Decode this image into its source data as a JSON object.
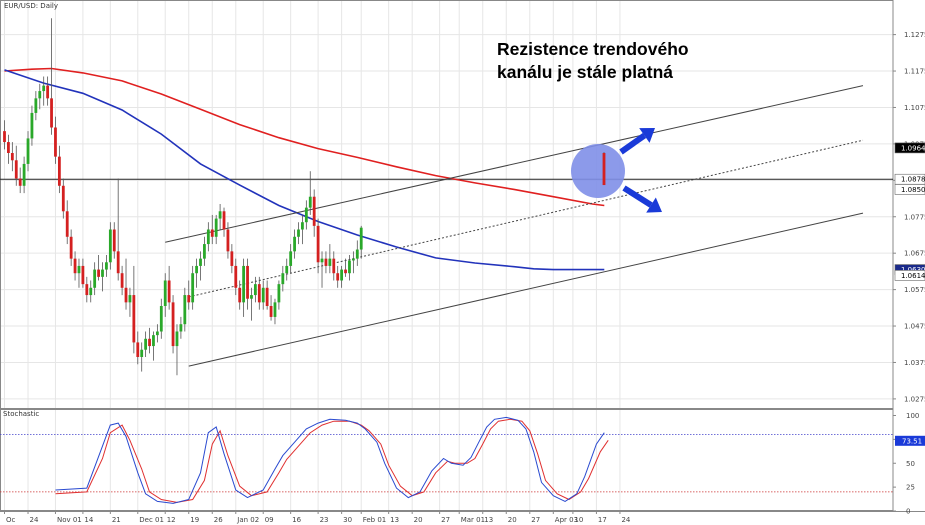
{
  "chart_data": [
    {
      "type": "candlestick",
      "title": "EUR/USD: Daily",
      "annotation": [
        "Rezistence trendového",
        "kanálu je stále platná"
      ],
      "y_ticks": [
        "1.1275",
        "1.1175",
        "1.1075",
        "1.0975",
        "1.0875",
        "1.0775",
        "1.0675",
        "1.0575",
        "1.0475",
        "1.0375",
        "1.0275"
      ],
      "ylim": [
        1.025,
        1.137
      ],
      "price_badges": [
        {
          "label": "1.0964",
          "value": 1.0964,
          "bg": "#000000",
          "fg": "#ffffff"
        },
        {
          "label": "1.0878",
          "value": 1.0878,
          "bg": "#ffffff",
          "fg": "#000000"
        },
        {
          "label": "1.0850",
          "value": 1.085,
          "bg": "#ffffff",
          "fg": "#000000"
        },
        {
          "label": "1.0630",
          "value": 1.063,
          "bg": "#1a2a8a",
          "fg": "#ffffff"
        },
        {
          "label": "1.0614",
          "value": 1.0614,
          "bg": "#ffffff",
          "fg": "#000000"
        }
      ],
      "horizontal_line": 1.0878,
      "x_labels": [
        "Oc",
        "24",
        "Nov 01",
        "14",
        "21",
        "Dec 01",
        "12",
        "19",
        "26",
        "Jan 02",
        "09",
        "16",
        "23",
        "30",
        "Feb 01",
        "13",
        "20",
        "27",
        "Mar 01",
        "13",
        "20",
        "27",
        "Apr 03",
        "10",
        "17",
        "24"
      ],
      "x_label_pos": [
        0,
        6,
        13,
        20,
        27,
        34,
        41,
        47,
        53,
        59,
        66,
        73,
        80,
        86,
        91,
        98,
        104,
        111,
        116,
        122,
        128,
        134,
        140,
        145,
        151,
        157
      ],
      "colors": {
        "bull": "#2aa82a",
        "bear": "#d42020",
        "sma_slow": "#e02020",
        "sma_fast": "#2233bb",
        "channel": "#444444",
        "arrow": "#1a3ad8",
        "highlight": "#7f8fe8",
        "grid": "#e6e6e6"
      },
      "channel": {
        "upper": [
          [
            41,
            1.0705
          ],
          [
            219,
            1.1135
          ]
        ],
        "middle": [
          [
            47,
            1.0555
          ],
          [
            219,
            1.0985
          ]
        ],
        "lower": [
          [
            47,
            1.0365
          ],
          [
            219,
            1.0785
          ]
        ]
      },
      "sma_slow": [
        [
          0,
          1.1175
        ],
        [
          7,
          1.118
        ],
        [
          12,
          1.1182
        ],
        [
          20,
          1.117
        ],
        [
          30,
          1.1148
        ],
        [
          40,
          1.1112
        ],
        [
          50,
          1.107
        ],
        [
          60,
          1.1028
        ],
        [
          70,
          1.0992
        ],
        [
          80,
          1.0962
        ],
        [
          90,
          1.0938
        ],
        [
          100,
          1.0912
        ],
        [
          110,
          1.0888
        ],
        [
          120,
          1.0868
        ],
        [
          130,
          1.085
        ],
        [
          140,
          1.083
        ],
        [
          150,
          1.081
        ],
        [
          153,
          1.0806
        ]
      ],
      "sma_fast": [
        [
          0,
          1.1178
        ],
        [
          10,
          1.1142
        ],
        [
          20,
          1.1114
        ],
        [
          30,
          1.1068
        ],
        [
          40,
          1.1002
        ],
        [
          50,
          1.092
        ],
        [
          60,
          1.0862
        ],
        [
          70,
          1.0806
        ],
        [
          80,
          1.0762
        ],
        [
          90,
          1.0725
        ],
        [
          100,
          1.0692
        ],
        [
          110,
          1.0662
        ],
        [
          120,
          1.0648
        ],
        [
          130,
          1.0638
        ],
        [
          135,
          1.0632
        ],
        [
          140,
          1.063
        ],
        [
          146,
          1.063
        ],
        [
          153,
          1.063
        ]
      ],
      "ohlc": [
        [
          1.101,
          1.104,
          1.096,
          1.098
        ],
        [
          1.098,
          1.1,
          1.092,
          1.095
        ],
        [
          1.095,
          1.098,
          1.09,
          1.093
        ],
        [
          1.093,
          1.097,
          1.086,
          1.088
        ],
        [
          1.088,
          1.091,
          1.084,
          1.086
        ],
        [
          1.086,
          1.094,
          1.084,
          1.092
        ],
        [
          1.092,
          1.101,
          1.09,
          1.099
        ],
        [
          1.099,
          1.108,
          1.097,
          1.106
        ],
        [
          1.106,
          1.112,
          1.104,
          1.11
        ],
        [
          1.11,
          1.114,
          1.107,
          1.112
        ],
        [
          1.112,
          1.116,
          1.108,
          1.1135
        ],
        [
          1.1135,
          1.116,
          1.108,
          1.11
        ],
        [
          1.11,
          1.132,
          1.1,
          1.102
        ],
        [
          1.102,
          1.105,
          1.092,
          1.094
        ],
        [
          1.094,
          1.097,
          1.084,
          1.086
        ],
        [
          1.086,
          1.088,
          1.077,
          1.079
        ],
        [
          1.079,
          1.082,
          1.07,
          1.072
        ],
        [
          1.072,
          1.074,
          1.064,
          1.066
        ],
        [
          1.066,
          1.068,
          1.06,
          1.062
        ],
        [
          1.062,
          1.066,
          1.058,
          1.064
        ],
        [
          1.064,
          1.066,
          1.058,
          1.059
        ],
        [
          1.059,
          1.061,
          1.054,
          1.056
        ],
        [
          1.056,
          1.06,
          1.054,
          1.058
        ],
        [
          1.058,
          1.065,
          1.056,
          1.063
        ],
        [
          1.063,
          1.067,
          1.06,
          1.061
        ],
        [
          1.061,
          1.065,
          1.057,
          1.063
        ],
        [
          1.063,
          1.067,
          1.061,
          1.065
        ],
        [
          1.065,
          1.076,
          1.063,
          1.074
        ],
        [
          1.074,
          1.076,
          1.066,
          1.068
        ],
        [
          1.068,
          1.088,
          1.06,
          1.062
        ],
        [
          1.062,
          1.064,
          1.056,
          1.058
        ],
        [
          1.058,
          1.066,
          1.052,
          1.054
        ],
        [
          1.054,
          1.058,
          1.05,
          1.056
        ],
        [
          1.056,
          1.064,
          1.04,
          1.043
        ],
        [
          1.043,
          1.046,
          1.037,
          1.039
        ],
        [
          1.039,
          1.043,
          1.035,
          1.041
        ],
        [
          1.041,
          1.046,
          1.039,
          1.044
        ],
        [
          1.044,
          1.047,
          1.04,
          1.042
        ],
        [
          1.042,
          1.046,
          1.038,
          1.045
        ],
        [
          1.045,
          1.048,
          1.043,
          1.046
        ],
        [
          1.046,
          1.055,
          1.044,
          1.053
        ],
        [
          1.053,
          1.062,
          1.05,
          1.06
        ],
        [
          1.06,
          1.064,
          1.052,
          1.054
        ],
        [
          1.054,
          1.056,
          1.04,
          1.042
        ],
        [
          1.042,
          1.048,
          1.034,
          1.046
        ],
        [
          1.046,
          1.05,
          1.044,
          1.048
        ],
        [
          1.048,
          1.058,
          1.046,
          1.056
        ],
        [
          1.056,
          1.06,
          1.052,
          1.054
        ],
        [
          1.054,
          1.064,
          1.052,
          1.062
        ],
        [
          1.062,
          1.066,
          1.058,
          1.064
        ],
        [
          1.064,
          1.068,
          1.06,
          1.066
        ],
        [
          1.066,
          1.072,
          1.064,
          1.07
        ],
        [
          1.07,
          1.076,
          1.068,
          1.074
        ],
        [
          1.074,
          1.078,
          1.07,
          1.072
        ],
        [
          1.072,
          1.078,
          1.07,
          1.077
        ],
        [
          1.077,
          1.081,
          1.074,
          1.079
        ],
        [
          1.079,
          1.08,
          1.072,
          1.074
        ],
        [
          1.074,
          1.076,
          1.066,
          1.068
        ],
        [
          1.068,
          1.07,
          1.062,
          1.064
        ],
        [
          1.064,
          1.066,
          1.056,
          1.058
        ],
        [
          1.058,
          1.06,
          1.052,
          1.054
        ],
        [
          1.054,
          1.066,
          1.05,
          1.064
        ],
        [
          1.064,
          1.066,
          1.052,
          1.055
        ],
        [
          1.055,
          1.058,
          1.049,
          1.056
        ],
        [
          1.056,
          1.061,
          1.054,
          1.059
        ],
        [
          1.059,
          1.061,
          1.052,
          1.054
        ],
        [
          1.054,
          1.06,
          1.052,
          1.058
        ],
        [
          1.058,
          1.06,
          1.052,
          1.053
        ],
        [
          1.053,
          1.056,
          1.049,
          1.05
        ],
        [
          1.05,
          1.055,
          1.048,
          1.054
        ],
        [
          1.054,
          1.06,
          1.052,
          1.059
        ],
        [
          1.059,
          1.064,
          1.057,
          1.062
        ],
        [
          1.062,
          1.066,
          1.06,
          1.064
        ],
        [
          1.064,
          1.07,
          1.062,
          1.068
        ],
        [
          1.068,
          1.074,
          1.066,
          1.072
        ],
        [
          1.072,
          1.076,
          1.07,
          1.074
        ],
        [
          1.074,
          1.078,
          1.07,
          1.076
        ],
        [
          1.076,
          1.082,
          1.074,
          1.08
        ],
        [
          1.08,
          1.09,
          1.078,
          1.083
        ],
        [
          1.083,
          1.085,
          1.072,
          1.075
        ],
        [
          1.075,
          1.077,
          1.062,
          1.065
        ],
        [
          1.065,
          1.068,
          1.058,
          1.066
        ],
        [
          1.066,
          1.068,
          1.062,
          1.064
        ],
        [
          1.064,
          1.07,
          1.062,
          1.066
        ],
        [
          1.066,
          1.068,
          1.06,
          1.062
        ],
        [
          1.062,
          1.064,
          1.058,
          1.06
        ],
        [
          1.06,
          1.064,
          1.058,
          1.063
        ],
        [
          1.063,
          1.066,
          1.061,
          1.062
        ],
        [
          1.062,
          1.067,
          1.06,
          1.0655
        ],
        [
          1.0655,
          1.068,
          1.062,
          1.066
        ],
        [
          1.066,
          1.071,
          1.064,
          1.0685
        ],
        [
          1.0685,
          1.075,
          1.066,
          1.0745
        ]
      ],
      "stochastic": {
        "title": "Stochastic",
        "y_ticks": [
          "100",
          "75",
          "50",
          "25",
          "0"
        ],
        "levels": [
          80,
          20
        ],
        "value_label": "73.51",
        "k": [
          [
            0,
            22
          ],
          [
            8,
            24
          ],
          [
            12,
            68
          ],
          [
            14,
            90
          ],
          [
            16,
            92
          ],
          [
            18,
            78
          ],
          [
            21,
            40
          ],
          [
            23,
            18
          ],
          [
            26,
            10
          ],
          [
            30,
            8
          ],
          [
            34,
            12
          ],
          [
            37,
            40
          ],
          [
            39,
            82
          ],
          [
            41,
            88
          ],
          [
            43,
            60
          ],
          [
            46,
            22
          ],
          [
            49,
            14
          ],
          [
            53,
            22
          ],
          [
            56,
            44
          ],
          [
            58,
            58
          ],
          [
            61,
            72
          ],
          [
            64,
            86
          ],
          [
            67,
            92
          ],
          [
            70,
            96
          ],
          [
            74,
            95
          ],
          [
            77,
            92
          ],
          [
            79,
            86
          ],
          [
            82,
            72
          ],
          [
            84,
            50
          ],
          [
            87,
            24
          ],
          [
            90,
            14
          ],
          [
            93,
            20
          ],
          [
            96,
            42
          ],
          [
            99,
            55
          ],
          [
            101,
            50
          ],
          [
            104,
            48
          ],
          [
            106,
            56
          ],
          [
            108,
            72
          ],
          [
            110,
            88
          ],
          [
            112,
            96
          ],
          [
            115,
            98
          ],
          [
            118,
            95
          ],
          [
            120,
            86
          ],
          [
            122,
            62
          ],
          [
            124,
            30
          ],
          [
            127,
            16
          ],
          [
            130,
            10
          ],
          [
            133,
            18
          ],
          [
            135,
            36
          ],
          [
            138,
            70
          ],
          [
            140,
            82
          ]
        ],
        "d": [
          [
            0,
            18
          ],
          [
            8,
            20
          ],
          [
            12,
            55
          ],
          [
            14,
            82
          ],
          [
            17,
            90
          ],
          [
            19,
            74
          ],
          [
            22,
            44
          ],
          [
            24,
            20
          ],
          [
            27,
            12
          ],
          [
            31,
            9
          ],
          [
            35,
            12
          ],
          [
            38,
            32
          ],
          [
            40,
            70
          ],
          [
            42,
            84
          ],
          [
            44,
            58
          ],
          [
            47,
            26
          ],
          [
            50,
            16
          ],
          [
            54,
            20
          ],
          [
            57,
            40
          ],
          [
            59,
            54
          ],
          [
            62,
            68
          ],
          [
            65,
            82
          ],
          [
            68,
            90
          ],
          [
            71,
            94
          ],
          [
            75,
            94
          ],
          [
            78,
            90
          ],
          [
            80,
            84
          ],
          [
            83,
            70
          ],
          [
            85,
            48
          ],
          [
            88,
            26
          ],
          [
            91,
            16
          ],
          [
            94,
            20
          ],
          [
            97,
            40
          ],
          [
            100,
            52
          ],
          [
            102,
            50
          ],
          [
            105,
            50
          ],
          [
            107,
            55
          ],
          [
            109,
            70
          ],
          [
            111,
            86
          ],
          [
            113,
            94
          ],
          [
            116,
            96
          ],
          [
            119,
            94
          ],
          [
            121,
            84
          ],
          [
            123,
            60
          ],
          [
            125,
            32
          ],
          [
            128,
            18
          ],
          [
            131,
            12
          ],
          [
            134,
            20
          ],
          [
            136,
            34
          ],
          [
            139,
            62
          ],
          [
            141,
            74
          ]
        ]
      }
    }
  ]
}
